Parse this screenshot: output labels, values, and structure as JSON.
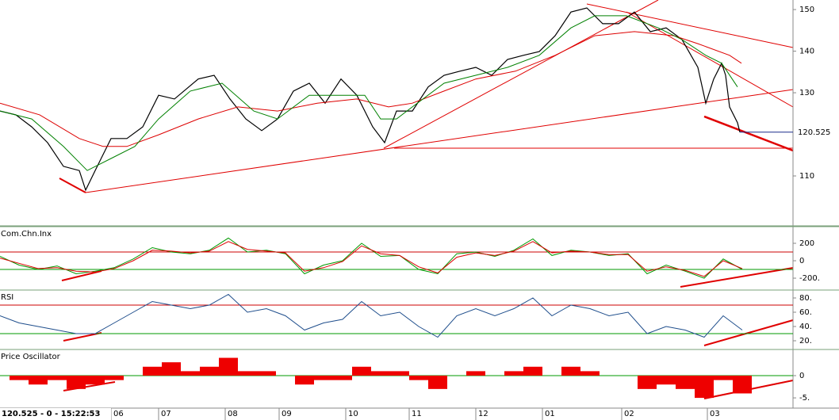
{
  "chart_data": [
    {
      "type": "line",
      "ylim": [
        98,
        152.3
      ],
      "yticks": [
        110,
        130,
        140,
        150
      ],
      "last_value": 120.525,
      "series": [
        {
          "color": "#000000",
          "x": [
            0,
            5,
            10,
            15,
            20,
            25,
            27,
            30,
            35,
            40,
            45,
            50,
            55,
            62.5,
            67.5,
            72.5,
            77.5,
            82.5,
            87.5,
            92.5,
            97.5,
            102.5,
            107.5,
            112.5,
            117.5,
            121.25,
            125,
            130,
            135,
            140,
            145,
            150,
            155,
            160,
            165,
            170,
            175,
            180,
            185,
            190,
            195,
            200,
            205,
            210,
            215,
            220,
            222.5,
            225,
            227.5,
            228.75,
            230,
            232.5,
            233.25
          ],
          "values": [
            125.6,
            124.7,
            121.8,
            118,
            112.3,
            111.3,
            106.6,
            111.3,
            119,
            119,
            121.8,
            129.4,
            128.5,
            133.3,
            134.2,
            128.5,
            123.7,
            120.9,
            123.7,
            130.4,
            132.3,
            127.5,
            133.3,
            129.4,
            121.8,
            118,
            125.6,
            125.6,
            131.4,
            134.2,
            135.2,
            136.1,
            134.2,
            138,
            139,
            139.9,
            143.7,
            149.4,
            150.4,
            146.6,
            146.6,
            149.4,
            144.7,
            145.6,
            142.8,
            136.1,
            127.5,
            133.3,
            137.1,
            134.2,
            126.6,
            122.8,
            120.525
          ]
        },
        {
          "color": "#dd0000",
          "x": [
            0,
            12.5,
            25,
            32.5,
            40,
            50,
            62.5,
            75,
            87.5,
            100,
            112.5,
            122.5,
            130,
            140,
            150,
            162.5,
            175,
            187.5,
            200,
            212.5,
            220,
            230,
            233.75
          ],
          "values": [
            127.5,
            124.7,
            119,
            117.1,
            117.1,
            119.9,
            123.7,
            126.6,
            125.6,
            127.5,
            128.5,
            126.6,
            127.5,
            130.4,
            133.3,
            135.2,
            139,
            143.7,
            144.7,
            143.7,
            141.8,
            139,
            137.1
          ]
        },
        {
          "color": "#008000",
          "x": [
            0,
            10,
            20,
            27.5,
            35,
            42.5,
            50,
            60,
            70,
            80,
            87.5,
            97.5,
            105,
            115,
            120,
            125,
            130,
            140,
            150,
            160,
            170,
            180,
            187.5,
            197.5,
            207.5,
            215,
            222.5,
            227.5,
            232.5
          ],
          "values": [
            125.6,
            123.7,
            117.1,
            111.3,
            114.2,
            117.1,
            123.7,
            130.4,
            132.3,
            125.6,
            123.7,
            129.4,
            129.4,
            129.4,
            123.7,
            123.7,
            126.6,
            132.3,
            134.2,
            136.1,
            139,
            145.6,
            148.5,
            148.5,
            145.6,
            142.8,
            139,
            137.1,
            131.4
          ]
        }
      ]
    },
    {
      "type": "line",
      "title": "Com.Chn.Inx",
      "ylim": [
        -327,
        382
      ],
      "yticks": [
        200,
        0,
        {
          "value": -200,
          "label": "-200."
        }
      ],
      "levels": [
        {
          "value": 100,
          "color": "#cc0000"
        },
        {
          "value": -100,
          "color": "#009900"
        }
      ],
      "x": [
        0,
        6,
        12,
        18,
        24,
        30,
        36,
        42,
        48,
        54,
        60,
        66,
        72,
        78,
        84,
        90,
        96,
        102,
        108,
        114,
        120,
        126,
        132,
        138,
        144,
        150,
        156,
        162,
        168,
        174,
        180,
        186,
        192,
        198,
        204,
        210,
        216,
        222,
        228,
        234
      ],
      "series": [
        {
          "color": "#009900",
          "values": [
            50,
            -50,
            -100,
            -60,
            -150,
            -120,
            -80,
            20,
            150,
            100,
            80,
            120,
            260,
            100,
            120,
            80,
            -150,
            -50,
            0,
            200,
            50,
            60,
            -100,
            -150,
            80,
            100,
            50,
            120,
            250,
            60,
            120,
            100,
            60,
            80,
            -150,
            -50,
            -120,
            -200,
            20,
            -100
          ]
        },
        {
          "color": "#dd0000",
          "values": [
            30,
            -30,
            -90,
            -80,
            -120,
            -130,
            -90,
            0,
            120,
            110,
            90,
            110,
            220,
            130,
            110,
            90,
            -120,
            -80,
            -10,
            170,
            80,
            60,
            -70,
            -140,
            40,
            90,
            60,
            110,
            220,
            90,
            110,
            100,
            70,
            70,
            -120,
            -70,
            -110,
            -180,
            0,
            -90
          ]
        }
      ]
    },
    {
      "type": "line",
      "title": "RSI",
      "ylim": [
        8.9,
        90
      ],
      "yticks": [
        {
          "value": 80,
          "label": "80."
        },
        {
          "value": 60,
          "label": "60."
        },
        {
          "value": 40,
          "label": "40."
        },
        {
          "value": 20,
          "label": "20."
        }
      ],
      "levels": [
        {
          "value": 70,
          "color": "#cc0000"
        },
        {
          "value": 30,
          "color": "#009900"
        }
      ],
      "x": [
        0,
        6,
        12,
        18,
        24,
        30,
        36,
        42,
        48,
        54,
        60,
        66,
        72,
        78,
        84,
        90,
        96,
        102,
        108,
        114,
        120,
        126,
        132,
        138,
        144,
        150,
        156,
        162,
        168,
        174,
        180,
        186,
        192,
        198,
        204,
        210,
        216,
        222,
        228,
        234
      ],
      "series": [
        {
          "color": "#1f4e8c",
          "values": [
            55,
            45,
            40,
            35,
            30,
            30,
            45,
            60,
            75,
            70,
            65,
            70,
            85,
            60,
            65,
            55,
            35,
            45,
            50,
            75,
            55,
            60,
            40,
            25,
            55,
            65,
            55,
            65,
            80,
            55,
            70,
            65,
            55,
            60,
            30,
            40,
            35,
            25,
            55,
            35
          ]
        }
      ]
    },
    {
      "type": "bar",
      "title": "Price Oscillator",
      "ylim": [
        -7.3,
        5.7
      ],
      "yticks": [
        0,
        {
          "value": -5,
          "label": "-5."
        }
      ],
      "levels": [
        {
          "value": 0,
          "color": "#009900"
        }
      ],
      "color": "#ee0000",
      "x": [
        0,
        6,
        12,
        18,
        24,
        30,
        36,
        42,
        48,
        54,
        60,
        66,
        72,
        78,
        84,
        90,
        96,
        102,
        108,
        114,
        120,
        126,
        132,
        138,
        144,
        150,
        156,
        162,
        168,
        174,
        180,
        186,
        192,
        198,
        204,
        210,
        216,
        222,
        228,
        234
      ],
      "values": [
        0,
        -1,
        -2,
        -1,
        -3,
        -2,
        -1,
        0,
        2,
        3,
        1,
        2,
        4,
        1,
        1,
        0,
        -2,
        -1,
        -1,
        2,
        1,
        1,
        -1,
        -3,
        0,
        1,
        0,
        1,
        2,
        0,
        2,
        1,
        0,
        0,
        -3,
        -2,
        -3,
        -5,
        -1,
        -4
      ]
    }
  ],
  "x_axis": {
    "xlim": [
      0,
      250
    ],
    "xticks": [
      {
        "value": 35,
        "label": "06"
      },
      {
        "value": 50,
        "label": "07"
      },
      {
        "value": 71,
        "label": "08"
      },
      {
        "value": 88,
        "label": "09"
      },
      {
        "value": 109,
        "label": "10"
      },
      {
        "value": 129,
        "label": "11"
      },
      {
        "value": 150,
        "label": "12"
      },
      {
        "value": 171,
        "label": "01"
      },
      {
        "value": 196,
        "label": "02"
      },
      {
        "value": 223,
        "label": "03"
      }
    ]
  },
  "status": "120.525 - 0 - 15:22:53"
}
